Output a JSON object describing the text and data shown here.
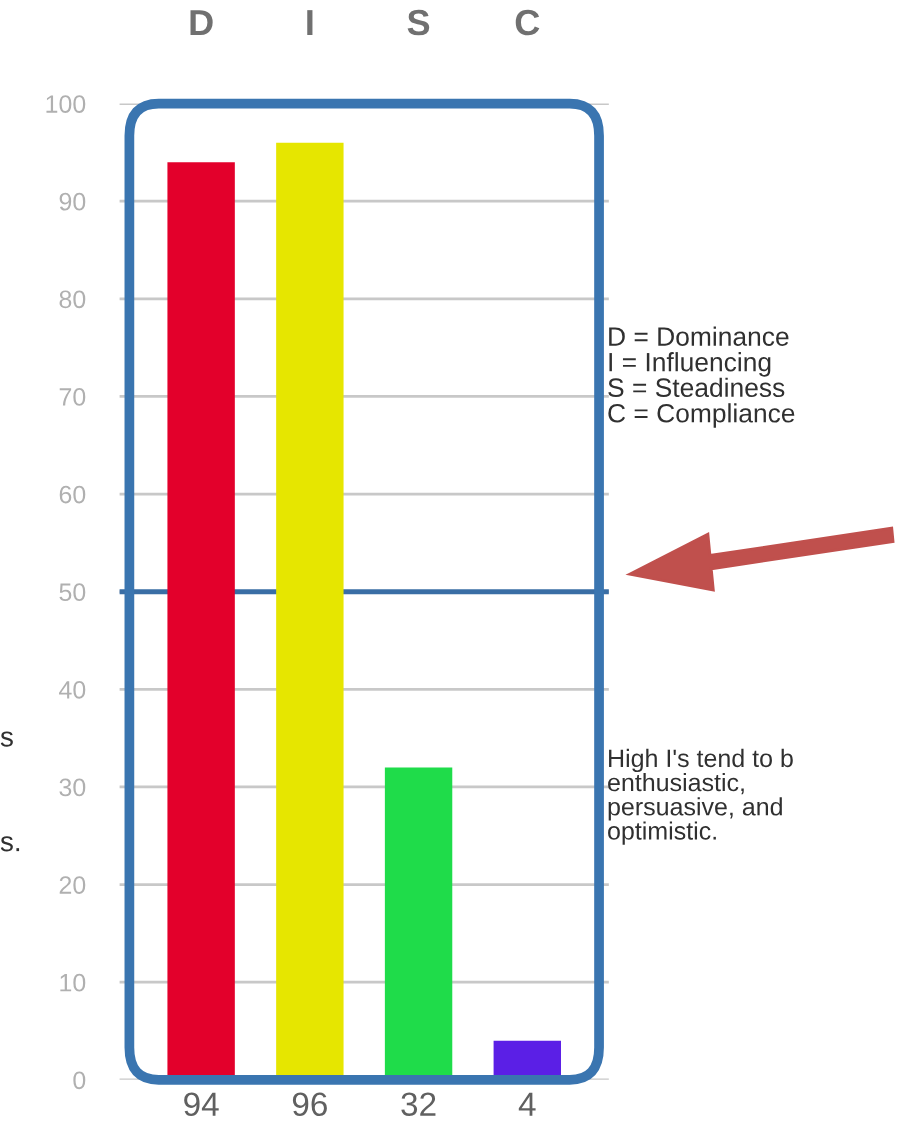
{
  "chart_data": {
    "type": "bar",
    "categories": [
      "D",
      "I",
      "S",
      "C"
    ],
    "values": [
      94,
      96,
      32,
      4
    ],
    "colors": [
      "#e3002b",
      "#e6e600",
      "#1fdc4a",
      "#5b1fe6"
    ],
    "value_labels": [
      "94",
      "96",
      "32",
      "4"
    ],
    "ylim": [
      0,
      100
    ],
    "yticks": [
      0,
      10,
      20,
      30,
      40,
      50,
      60,
      70,
      80,
      90,
      100
    ],
    "grid": "y",
    "ref_lines": [
      {
        "axis": "y",
        "value": 50,
        "color": "#3a6ea5"
      }
    ],
    "annotations": [
      "D = Dominance\nI = Influencing\nS = Steadiness\nC = Compliance",
      "High I's tend to b\nenthusiastic,\npersuasive, and\noptimistic.",
      "s",
      "s."
    ]
  }
}
